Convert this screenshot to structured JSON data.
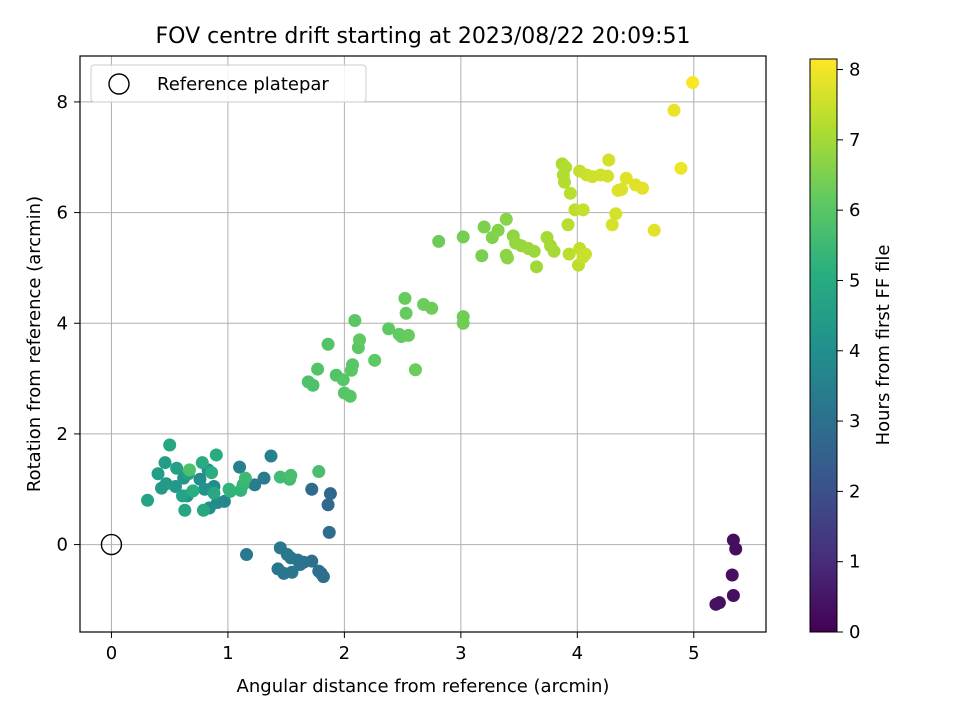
{
  "chart_data": {
    "type": "scatter",
    "title": "FOV centre drift starting at 2023/08/22 20:09:51",
    "xlabel": "Angular distance from reference (arcmin)",
    "ylabel": "Rotation from reference (arcmin)",
    "xlim": [
      -0.27,
      5.62
    ],
    "ylim": [
      -1.58,
      8.83
    ],
    "xticks": [
      "0",
      "1",
      "2",
      "3",
      "4",
      "5"
    ],
    "yticks": [
      "0",
      "2",
      "4",
      "6",
      "8"
    ],
    "grid": true,
    "legend": {
      "placement": "top-left",
      "entries": [
        "Reference platepar"
      ]
    },
    "reference_point": {
      "x": 0,
      "y": 0
    },
    "colorbar": {
      "label": "Hours from first FF file",
      "range": [
        0,
        8.15
      ],
      "ticks": [
        "0",
        "1",
        "2",
        "3",
        "4",
        "5",
        "6",
        "7",
        "8"
      ],
      "colormap": "viridis"
    },
    "points": [
      {
        "x": 5.34,
        "y": 0.08,
        "h": 0.3
      },
      {
        "x": 5.36,
        "y": -0.08,
        "h": 0.3
      },
      {
        "x": 5.33,
        "y": -0.55,
        "h": 0.35
      },
      {
        "x": 5.34,
        "y": -0.92,
        "h": 0.35
      },
      {
        "x": 5.22,
        "y": -1.05,
        "h": 0.4
      },
      {
        "x": 5.19,
        "y": -1.08,
        "h": 0.4
      },
      {
        "x": 1.88,
        "y": 0.92,
        "h": 2.7
      },
      {
        "x": 1.86,
        "y": 0.72,
        "h": 2.75
      },
      {
        "x": 1.72,
        "y": 1.0,
        "h": 2.8
      },
      {
        "x": 1.87,
        "y": 0.22,
        "h": 2.9
      },
      {
        "x": 1.8,
        "y": -0.52,
        "h": 2.9
      },
      {
        "x": 1.82,
        "y": -0.58,
        "h": 2.95
      },
      {
        "x": 1.78,
        "y": -0.48,
        "h": 3.0
      },
      {
        "x": 1.72,
        "y": -0.3,
        "h": 3.0
      },
      {
        "x": 1.65,
        "y": -0.32,
        "h": 3.05
      },
      {
        "x": 1.6,
        "y": -0.28,
        "h": 3.1
      },
      {
        "x": 1.62,
        "y": -0.36,
        "h": 3.1
      },
      {
        "x": 1.55,
        "y": -0.5,
        "h": 3.15
      },
      {
        "x": 1.48,
        "y": -0.52,
        "h": 3.15
      },
      {
        "x": 1.43,
        "y": -0.44,
        "h": 3.2
      },
      {
        "x": 1.54,
        "y": -0.24,
        "h": 3.2
      },
      {
        "x": 1.51,
        "y": -0.18,
        "h": 3.25
      },
      {
        "x": 1.45,
        "y": -0.06,
        "h": 3.25
      },
      {
        "x": 1.16,
        "y": -0.18,
        "h": 3.3
      },
      {
        "x": 1.23,
        "y": 1.08,
        "h": 3.35
      },
      {
        "x": 1.31,
        "y": 1.2,
        "h": 3.4
      },
      {
        "x": 1.37,
        "y": 1.6,
        "h": 3.5
      },
      {
        "x": 1.1,
        "y": 1.4,
        "h": 3.55
      },
      {
        "x": 0.97,
        "y": 0.78,
        "h": 3.7
      },
      {
        "x": 0.91,
        "y": 0.76,
        "h": 3.8
      },
      {
        "x": 0.84,
        "y": 0.66,
        "h": 3.9
      },
      {
        "x": 0.88,
        "y": 1.05,
        "h": 3.9
      },
      {
        "x": 0.76,
        "y": 1.18,
        "h": 4.0
      },
      {
        "x": 0.83,
        "y": 1.35,
        "h": 4.0
      },
      {
        "x": 0.8,
        "y": 1.0,
        "h": 4.1
      },
      {
        "x": 0.65,
        "y": 0.88,
        "h": 4.2
      },
      {
        "x": 0.62,
        "y": 1.2,
        "h": 4.3
      },
      {
        "x": 0.55,
        "y": 1.05,
        "h": 4.3
      },
      {
        "x": 0.47,
        "y": 1.1,
        "h": 4.4
      },
      {
        "x": 0.43,
        "y": 1.02,
        "h": 4.4
      },
      {
        "x": 0.4,
        "y": 1.28,
        "h": 4.5
      },
      {
        "x": 0.46,
        "y": 1.48,
        "h": 4.5
      },
      {
        "x": 0.56,
        "y": 1.38,
        "h": 4.6
      },
      {
        "x": 0.66,
        "y": 1.28,
        "h": 4.6
      },
      {
        "x": 0.61,
        "y": 0.88,
        "h": 4.7
      },
      {
        "x": 0.31,
        "y": 0.8,
        "h": 4.7
      },
      {
        "x": 0.5,
        "y": 1.8,
        "h": 4.8
      },
      {
        "x": 0.63,
        "y": 0.62,
        "h": 4.8
      },
      {
        "x": 0.79,
        "y": 0.62,
        "h": 4.9
      },
      {
        "x": 0.88,
        "y": 0.93,
        "h": 4.9
      },
      {
        "x": 0.9,
        "y": 1.62,
        "h": 5.0
      },
      {
        "x": 0.78,
        "y": 1.48,
        "h": 5.0
      },
      {
        "x": 0.7,
        "y": 0.97,
        "h": 5.1
      },
      {
        "x": 0.86,
        "y": 1.3,
        "h": 5.1
      },
      {
        "x": 1.01,
        "y": 1.0,
        "h": 5.2
      },
      {
        "x": 1.02,
        "y": 0.96,
        "h": 5.3
      },
      {
        "x": 1.11,
        "y": 0.98,
        "h": 5.3
      },
      {
        "x": 1.13,
        "y": 1.08,
        "h": 5.4
      },
      {
        "x": 1.15,
        "y": 1.2,
        "h": 5.5
      },
      {
        "x": 1.45,
        "y": 1.22,
        "h": 5.6
      },
      {
        "x": 1.53,
        "y": 1.18,
        "h": 5.6
      },
      {
        "x": 1.54,
        "y": 1.25,
        "h": 5.7
      },
      {
        "x": 1.78,
        "y": 1.32,
        "h": 5.7
      },
      {
        "x": 0.67,
        "y": 1.35,
        "h": 5.8
      },
      {
        "x": 1.69,
        "y": 2.94,
        "h": 5.8
      },
      {
        "x": 1.73,
        "y": 2.88,
        "h": 5.8
      },
      {
        "x": 1.77,
        "y": 3.17,
        "h": 5.9
      },
      {
        "x": 1.86,
        "y": 3.62,
        "h": 5.9
      },
      {
        "x": 1.93,
        "y": 3.06,
        "h": 5.9
      },
      {
        "x": 1.99,
        "y": 2.98,
        "h": 5.95
      },
      {
        "x": 2.0,
        "y": 2.74,
        "h": 5.95
      },
      {
        "x": 2.05,
        "y": 2.68,
        "h": 6.0
      },
      {
        "x": 2.06,
        "y": 3.15,
        "h": 6.0
      },
      {
        "x": 2.07,
        "y": 3.25,
        "h": 6.0
      },
      {
        "x": 2.09,
        "y": 4.05,
        "h": 6.05
      },
      {
        "x": 2.12,
        "y": 3.56,
        "h": 6.05
      },
      {
        "x": 2.13,
        "y": 3.7,
        "h": 6.1
      },
      {
        "x": 2.26,
        "y": 3.33,
        "h": 6.1
      },
      {
        "x": 2.38,
        "y": 3.9,
        "h": 6.1
      },
      {
        "x": 2.47,
        "y": 3.8,
        "h": 6.15
      },
      {
        "x": 2.49,
        "y": 3.76,
        "h": 6.15
      },
      {
        "x": 2.55,
        "y": 3.78,
        "h": 6.2
      },
      {
        "x": 2.53,
        "y": 4.18,
        "h": 6.2
      },
      {
        "x": 2.52,
        "y": 4.45,
        "h": 6.2
      },
      {
        "x": 2.61,
        "y": 3.16,
        "h": 6.25
      },
      {
        "x": 2.68,
        "y": 4.34,
        "h": 6.25
      },
      {
        "x": 2.75,
        "y": 4.27,
        "h": 6.3
      },
      {
        "x": 2.81,
        "y": 5.48,
        "h": 6.3
      },
      {
        "x": 3.02,
        "y": 4.12,
        "h": 6.35
      },
      {
        "x": 3.02,
        "y": 4.0,
        "h": 6.35
      },
      {
        "x": 3.02,
        "y": 5.56,
        "h": 6.4
      },
      {
        "x": 3.18,
        "y": 5.22,
        "h": 6.45
      },
      {
        "x": 3.2,
        "y": 5.74,
        "h": 6.5
      },
      {
        "x": 3.27,
        "y": 5.55,
        "h": 6.55
      },
      {
        "x": 3.32,
        "y": 5.68,
        "h": 6.6
      },
      {
        "x": 3.39,
        "y": 5.88,
        "h": 6.65
      },
      {
        "x": 3.39,
        "y": 5.23,
        "h": 6.7
      },
      {
        "x": 3.4,
        "y": 5.18,
        "h": 6.7
      },
      {
        "x": 3.45,
        "y": 5.58,
        "h": 6.75
      },
      {
        "x": 3.47,
        "y": 5.45,
        "h": 6.8
      },
      {
        "x": 3.52,
        "y": 5.4,
        "h": 6.85
      },
      {
        "x": 3.58,
        "y": 5.35,
        "h": 6.9
      },
      {
        "x": 3.63,
        "y": 5.3,
        "h": 6.9
      },
      {
        "x": 3.65,
        "y": 5.02,
        "h": 6.95
      },
      {
        "x": 3.74,
        "y": 5.55,
        "h": 7.0
      },
      {
        "x": 3.77,
        "y": 5.4,
        "h": 7.0
      },
      {
        "x": 3.8,
        "y": 5.3,
        "h": 7.05
      },
      {
        "x": 3.87,
        "y": 6.88,
        "h": 7.1
      },
      {
        "x": 3.88,
        "y": 6.68,
        "h": 7.15
      },
      {
        "x": 3.9,
        "y": 6.82,
        "h": 7.2
      },
      {
        "x": 3.89,
        "y": 6.55,
        "h": 7.2
      },
      {
        "x": 3.92,
        "y": 5.78,
        "h": 7.25
      },
      {
        "x": 3.93,
        "y": 5.25,
        "h": 7.3
      },
      {
        "x": 3.94,
        "y": 6.35,
        "h": 7.3
      },
      {
        "x": 3.98,
        "y": 6.05,
        "h": 7.35
      },
      {
        "x": 4.01,
        "y": 5.05,
        "h": 7.35
      },
      {
        "x": 4.02,
        "y": 6.75,
        "h": 7.4
      },
      {
        "x": 4.02,
        "y": 5.35,
        "h": 7.4
      },
      {
        "x": 4.05,
        "y": 5.2,
        "h": 7.45
      },
      {
        "x": 4.05,
        "y": 6.05,
        "h": 7.45
      },
      {
        "x": 4.07,
        "y": 5.25,
        "h": 7.5
      },
      {
        "x": 4.08,
        "y": 6.68,
        "h": 7.5
      },
      {
        "x": 4.13,
        "y": 6.65,
        "h": 7.55
      },
      {
        "x": 4.2,
        "y": 6.68,
        "h": 7.55
      },
      {
        "x": 4.26,
        "y": 6.66,
        "h": 7.6
      },
      {
        "x": 4.27,
        "y": 6.95,
        "h": 7.6
      },
      {
        "x": 4.3,
        "y": 5.78,
        "h": 7.65
      },
      {
        "x": 4.33,
        "y": 5.98,
        "h": 7.65
      },
      {
        "x": 4.35,
        "y": 6.4,
        "h": 7.7
      },
      {
        "x": 4.38,
        "y": 6.42,
        "h": 7.7
      },
      {
        "x": 4.42,
        "y": 6.62,
        "h": 7.75
      },
      {
        "x": 4.5,
        "y": 6.5,
        "h": 7.75
      },
      {
        "x": 4.56,
        "y": 6.44,
        "h": 7.8
      },
      {
        "x": 4.66,
        "y": 5.68,
        "h": 7.8
      },
      {
        "x": 4.83,
        "y": 7.85,
        "h": 7.9
      },
      {
        "x": 4.89,
        "y": 6.8,
        "h": 7.95
      },
      {
        "x": 4.99,
        "y": 8.35,
        "h": 8.1
      }
    ]
  }
}
